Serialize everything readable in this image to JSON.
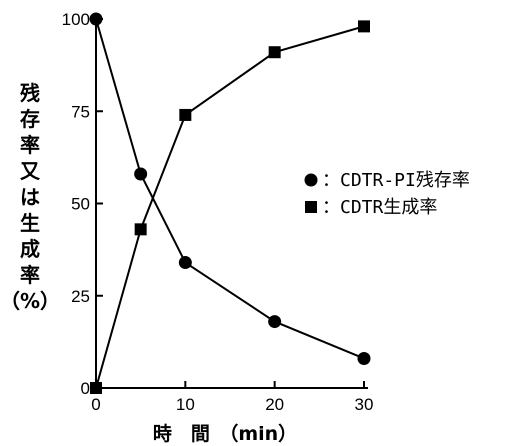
{
  "chart_data": {
    "type": "line",
    "title": "",
    "xlabel": "時　間　（min）",
    "ylabel_lines": [
      "残",
      "存",
      "率",
      "又",
      "は",
      "生",
      "成",
      "率",
      "（%）"
    ],
    "xlim": [
      0,
      30
    ],
    "ylim": [
      0,
      100
    ],
    "x_ticks": [
      0,
      10,
      20,
      30
    ],
    "y_ticks": [
      0,
      25,
      50,
      75,
      100
    ],
    "grid": false,
    "legend_position": "right-middle",
    "series": [
      {
        "name": "：CDTR-PI残存率",
        "marker": "circle",
        "x": [
          0,
          5,
          10,
          20,
          30
        ],
        "y": [
          100,
          58,
          34,
          18,
          8
        ]
      },
      {
        "name": "：CDTR生成率",
        "marker": "square",
        "x": [
          0,
          5,
          10,
          20,
          30
        ],
        "y": [
          0,
          43,
          74,
          91,
          98
        ]
      }
    ],
    "colors": {
      "marker": "#000000",
      "line": "#000000"
    }
  }
}
